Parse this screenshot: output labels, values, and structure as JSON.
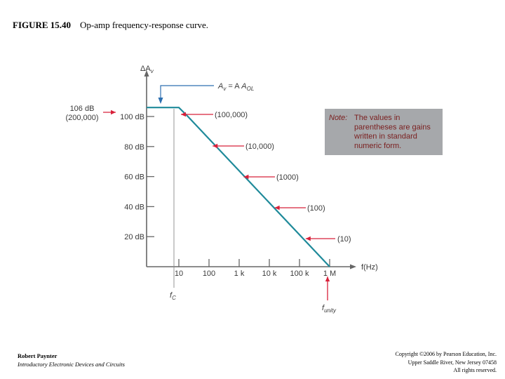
{
  "figure": {
    "label": "FIGURE 15.40",
    "caption": "Op-amp frequency-response curve."
  },
  "footer": {
    "author": "Robert Paynter",
    "book": "Introductory Electronic Devices and Circuits",
    "copyright_lines": [
      "Copyright ©2006 by Pearson Education, Inc.",
      "Upper Saddle River, New Jersey 07458",
      "All rights reserved."
    ]
  },
  "chart_data": {
    "type": "line",
    "ylabel": {
      "prefix": "ΔA",
      "sub": "v"
    },
    "xlabel": "f(Hz)",
    "x_axis": {
      "scale": "log",
      "ticks": [
        10,
        100,
        1000,
        10000,
        100000,
        1000000
      ],
      "tick_labels": [
        "10",
        "100",
        "1 k",
        "10 k",
        "100 k",
        "1 M"
      ]
    },
    "y_axis": {
      "unit": "dB",
      "ticks": [
        20,
        40,
        60,
        80,
        100
      ],
      "tick_labels": [
        "20 dB",
        "40 dB",
        "60 dB",
        "80 dB",
        "100 dB"
      ]
    },
    "series": [
      {
        "points": [
          {
            "x": 1,
            "y": 106
          },
          {
            "x": 10,
            "y": 106
          },
          {
            "x": 20,
            "y": 100
          },
          {
            "x": 1000000,
            "y": 0
          }
        ]
      }
    ],
    "annotations": {
      "max_gain_db": "106 dB",
      "max_gain_ratio": "(200,000)",
      "open_loop_label": {
        "a": "A",
        "a_sub": "v",
        "eq": " = A",
        "b_sub": "OL"
      },
      "fc_label": {
        "main": "f",
        "sub": "C"
      },
      "funity_label": {
        "main": "f",
        "sub": "unity"
      },
      "gain_ratios": [
        {
          "label": "(100,000)",
          "y_db": 100
        },
        {
          "label": "(10,000)",
          "y_db": 80
        },
        {
          "label": "(1000)",
          "y_db": 60
        },
        {
          "label": "(100)",
          "y_db": 40
        },
        {
          "label": "(10)",
          "y_db": 20
        }
      ]
    },
    "note": {
      "title": "Note:",
      "lines": [
        "The values in",
        "parentheses are gains",
        "written in standard",
        "numeric form."
      ]
    },
    "colors": {
      "curve": "#1f8a9a",
      "axis": "#666666",
      "arrow": "#d8203a",
      "note_bg": "#a6a8ab",
      "text": "#3a3a3a"
    }
  }
}
